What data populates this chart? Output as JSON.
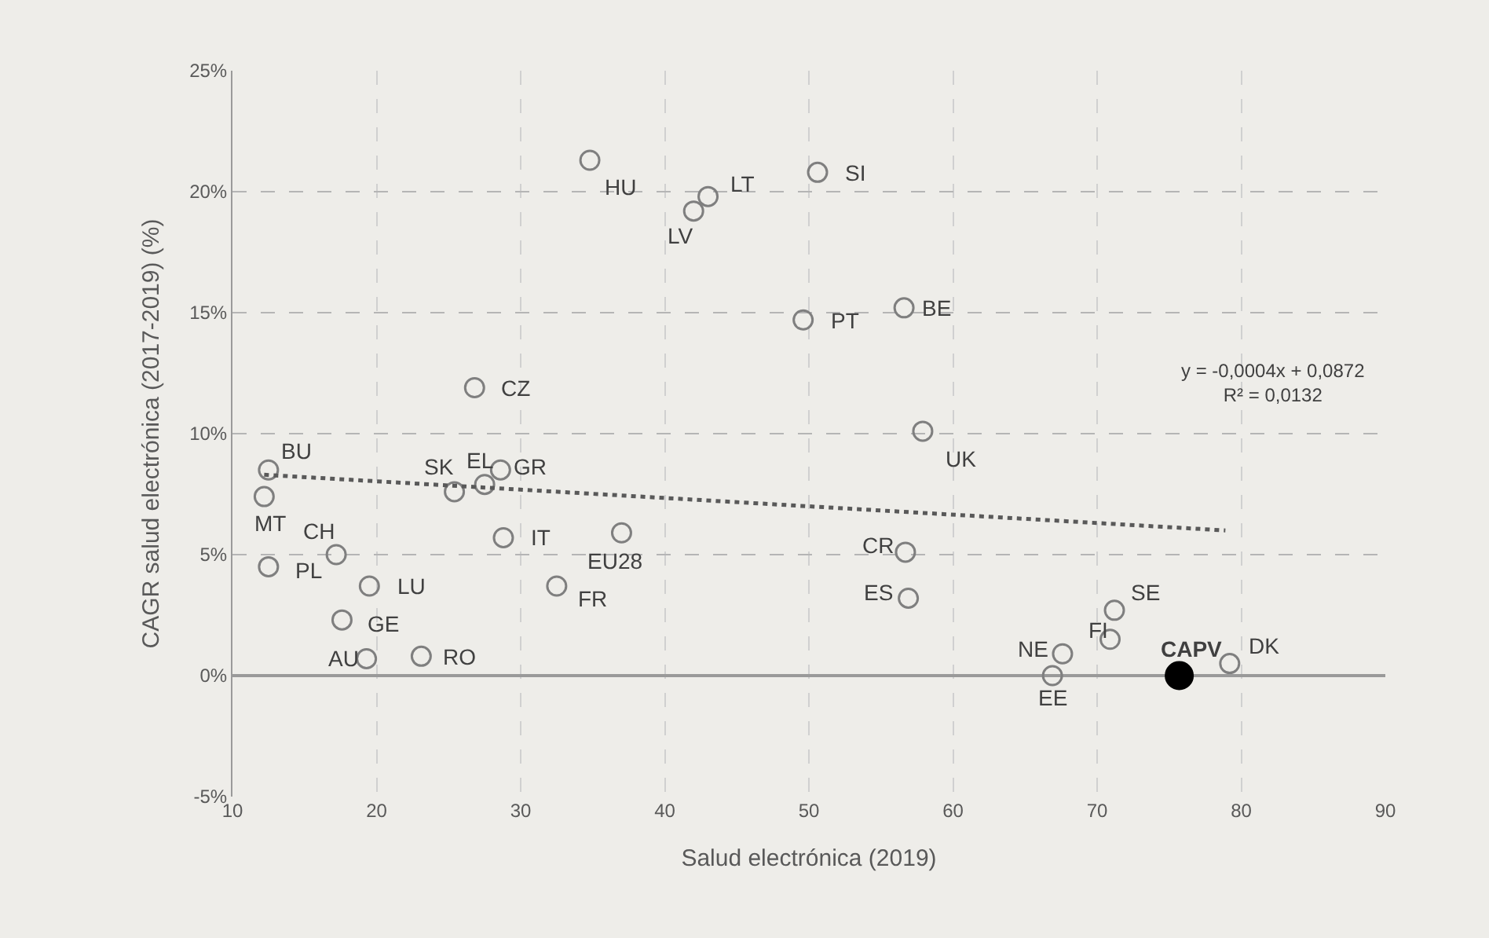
{
  "chart_data": {
    "type": "scatter",
    "xlabel": "Salud electrónica (2019)",
    "ylabel": "CAGR salud electrónica (2017-2019) (%)",
    "xlim": [
      10,
      90
    ],
    "xticks": [
      10,
      20,
      30,
      40,
      50,
      60,
      70,
      80,
      90
    ],
    "ylim": [
      -5,
      25
    ],
    "yticks": [
      {
        "value": -5,
        "label": "-5%"
      },
      {
        "value": 0,
        "label": "0%"
      },
      {
        "value": 5,
        "label": "5%"
      },
      {
        "value": 10,
        "label": "10%"
      },
      {
        "value": 15,
        "label": "15%"
      },
      {
        "value": 20,
        "label": "20%"
      },
      {
        "value": 25,
        "label": "25%"
      }
    ],
    "grid": true,
    "marker": "circle",
    "series": [
      {
        "color": "#7f7f7f",
        "x": [
          34.8,
          43.0,
          42.0,
          50.6,
          49.6,
          56.6,
          57.9,
          26.8,
          12.5,
          12.2,
          25.4,
          27.5,
          28.6,
          17.2,
          12.5,
          28.8,
          37.0,
          19.5,
          32.5,
          17.6,
          19.3,
          23.1,
          56.7,
          56.9,
          71.2,
          70.9,
          67.6,
          66.9,
          79.2
        ],
        "values": [
          21.3,
          19.8,
          19.2,
          20.8,
          14.7,
          15.2,
          10.1,
          11.9,
          8.5,
          7.4,
          7.6,
          7.9,
          8.5,
          5.0,
          4.5,
          5.7,
          5.9,
          3.7,
          3.7,
          2.3,
          0.7,
          0.8,
          5.1,
          3.2,
          2.7,
          1.5,
          0.9,
          0.0,
          0.5
        ]
      },
      {
        "color": "#000000",
        "x": [
          75.7
        ],
        "values": [
          0.0
        ]
      },
      {
        "type": "line",
        "color": "#595959",
        "line_style": "dotted",
        "marker": "none",
        "x": [
          12.2,
          78.9
        ],
        "values": [
          8.3,
          6.0
        ]
      }
    ],
    "annotations": [
      {
        "text": "HU",
        "x": 34.8,
        "y": 21.3
      },
      {
        "text": "LT",
        "x": 43.0,
        "y": 19.8
      },
      {
        "text": "LV",
        "x": 42.0,
        "y": 19.2
      },
      {
        "text": "SI",
        "x": 50.6,
        "y": 20.8
      },
      {
        "text": "PT",
        "x": 49.6,
        "y": 14.7
      },
      {
        "text": "BE",
        "x": 56.6,
        "y": 15.2
      },
      {
        "text": "UK",
        "x": 57.9,
        "y": 10.1
      },
      {
        "text": "CZ",
        "x": 26.8,
        "y": 11.9
      },
      {
        "text": "BU",
        "x": 12.5,
        "y": 8.5
      },
      {
        "text": "MT",
        "x": 12.2,
        "y": 7.4
      },
      {
        "text": "SK",
        "x": 25.4,
        "y": 7.6
      },
      {
        "text": "EL",
        "x": 27.5,
        "y": 7.9
      },
      {
        "text": "GR",
        "x": 28.6,
        "y": 8.5
      },
      {
        "text": "CH",
        "x": 17.2,
        "y": 5.0
      },
      {
        "text": "PL",
        "x": 12.5,
        "y": 4.5
      },
      {
        "text": "IT",
        "x": 28.8,
        "y": 5.7
      },
      {
        "text": "EU28",
        "x": 37.0,
        "y": 5.9
      },
      {
        "text": "LU",
        "x": 19.5,
        "y": 3.7
      },
      {
        "text": "FR",
        "x": 32.5,
        "y": 3.7
      },
      {
        "text": "GE",
        "x": 17.6,
        "y": 2.3
      },
      {
        "text": "AU",
        "x": 19.3,
        "y": 0.7
      },
      {
        "text": "RO",
        "x": 23.1,
        "y": 0.8
      },
      {
        "text": "CR",
        "x": 56.7,
        "y": 5.1
      },
      {
        "text": "ES",
        "x": 56.9,
        "y": 3.2
      },
      {
        "text": "SE",
        "x": 71.2,
        "y": 2.7
      },
      {
        "text": "FI",
        "x": 70.9,
        "y": 1.5
      },
      {
        "text": "NE",
        "x": 67.6,
        "y": 0.9
      },
      {
        "text": "EE",
        "x": 66.9,
        "y": 0.0
      },
      {
        "text": "DK",
        "x": 79.2,
        "y": 0.5
      },
      {
        "text": "CAPV",
        "x": 75.7,
        "y": 0.0
      },
      "y = -0,0004x + 0,0872\nR² = 0,0132"
    ]
  }
}
